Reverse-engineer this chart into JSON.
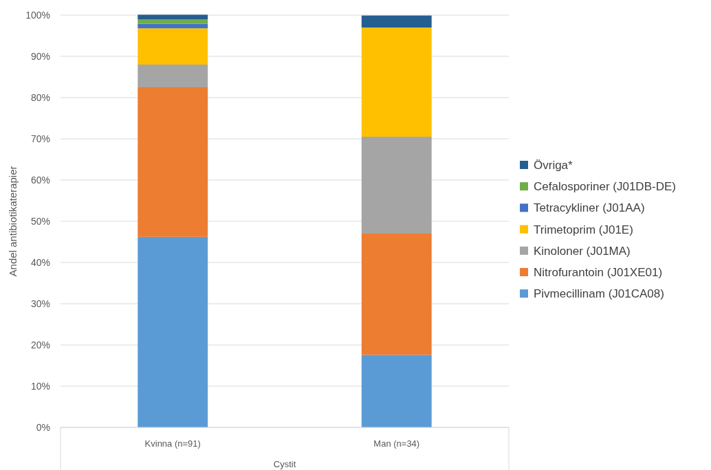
{
  "chart_data": {
    "type": "bar",
    "stacked": true,
    "xlabel": "Cystit",
    "ylabel": "Andel antibiotikaterapier",
    "categories": [
      "Kvinna (n=91)",
      "Man (n=34)"
    ],
    "series": [
      {
        "name": "Pivmecillinam (J01CA08)",
        "color": "#5b9bd5",
        "values": [
          46.2,
          17.6
        ]
      },
      {
        "name": "Nitrofurantoin (J01XE01)",
        "color": "#ed7d31",
        "values": [
          36.3,
          29.4
        ]
      },
      {
        "name": "Kinoloner (J01MA)",
        "color": "#a5a5a5",
        "values": [
          5.5,
          23.5
        ]
      },
      {
        "name": "Trimetoprim (J01E)",
        "color": "#ffc000",
        "values": [
          8.8,
          26.5
        ]
      },
      {
        "name": "Tetracykliner (J01AA)",
        "color": "#4472c4",
        "values": [
          1.1,
          0
        ]
      },
      {
        "name": "Cefalosporiner (J01DB-DE)",
        "color": "#70ad47",
        "values": [
          1.1,
          0
        ]
      },
      {
        "name": "Övriga*",
        "color": "#255e91",
        "values": [
          1.1,
          2.9
        ]
      }
    ],
    "ylim": [
      0,
      100
    ],
    "yticks": [
      {
        "value": 0,
        "label": "0%"
      },
      {
        "value": 10,
        "label": "10%"
      },
      {
        "value": 20,
        "label": "20%"
      },
      {
        "value": 30,
        "label": "30%"
      },
      {
        "value": 40,
        "label": "40%"
      },
      {
        "value": 50,
        "label": "50%"
      },
      {
        "value": 60,
        "label": "60%"
      },
      {
        "value": 70,
        "label": "70%"
      },
      {
        "value": 80,
        "label": "80%"
      },
      {
        "value": 90,
        "label": "90%"
      },
      {
        "value": 100,
        "label": "100%"
      }
    ],
    "grid": "y",
    "legend": "right"
  }
}
